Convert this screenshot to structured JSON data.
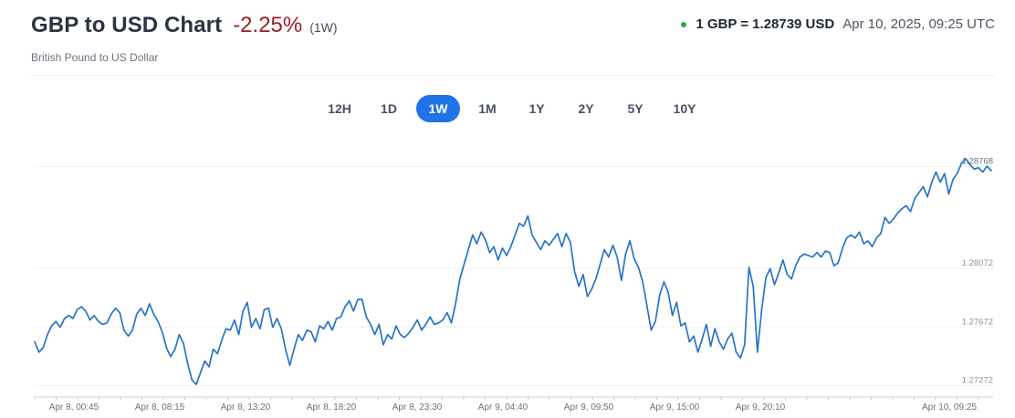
{
  "header": {
    "title": "GBP to USD Chart",
    "change": "-2.25%",
    "period": "(1W)",
    "subtitle": "British Pound to US Dollar"
  },
  "rate": {
    "value": "1 GBP = 1.28739 USD",
    "time": "Apr 10, 2025, 09:25 UTC",
    "status_color": "#1fae4a"
  },
  "colors": {
    "line": "#2a73c8",
    "accent": "#1f73e6",
    "negative": "#9b1f2a"
  },
  "tabs": [
    {
      "label": "12H",
      "active": false
    },
    {
      "label": "1D",
      "active": false
    },
    {
      "label": "1W",
      "active": true
    },
    {
      "label": "1M",
      "active": false
    },
    {
      "label": "1Y",
      "active": false
    },
    {
      "label": "2Y",
      "active": false
    },
    {
      "label": "5Y",
      "active": false
    },
    {
      "label": "10Y",
      "active": false
    }
  ],
  "chart_data": {
    "type": "line",
    "title": "",
    "xlabel": "",
    "ylabel": "",
    "grid": "horizontal",
    "x_tick_labels": [
      "Apr 8, 00:45",
      "Apr 8, 08:15",
      "Apr 8, 13:20",
      "Apr 8, 18:20",
      "Apr 8, 23:30",
      "Apr 9, 04:40",
      "Apr 9, 09:50",
      "Apr 9, 15:00",
      "Apr 9, 20:10",
      "Apr 10, 09:25"
    ],
    "y_tick_labels": [
      "1.28768",
      "1.28072",
      "1.27672",
      "1.27272"
    ],
    "y_ticks": [
      1.28768,
      1.28072,
      1.27672,
      1.27272
    ],
    "ylim": [
      1.272,
      1.2892
    ],
    "series": [
      {
        "values": [
          1.2757,
          1.275,
          1.2753,
          1.2762,
          1.2768,
          1.2771,
          1.2767,
          1.2773,
          1.2775,
          1.2773,
          1.2779,
          1.2781,
          1.2778,
          1.2772,
          1.2775,
          1.2771,
          1.2769,
          1.277,
          1.2776,
          1.278,
          1.2777,
          1.2765,
          1.2761,
          1.2765,
          1.2776,
          1.278,
          1.2775,
          1.2783,
          1.2776,
          1.2771,
          1.2764,
          1.2753,
          1.2747,
          1.2752,
          1.2762,
          1.2756,
          1.2742,
          1.2731,
          1.2728,
          1.2736,
          1.2744,
          1.274,
          1.2752,
          1.2749,
          1.2758,
          1.2766,
          1.2765,
          1.2772,
          1.2762,
          1.2778,
          1.2784,
          1.2767,
          1.2773,
          1.2766,
          1.2779,
          1.278,
          1.2767,
          1.2773,
          1.2766,
          1.2752,
          1.2741,
          1.2752,
          1.2762,
          1.2758,
          1.2765,
          1.2764,
          1.2757,
          1.2768,
          1.2766,
          1.2771,
          1.2765,
          1.2773,
          1.2774,
          1.2781,
          1.2785,
          1.2778,
          1.2786,
          1.2786,
          1.2774,
          1.2769,
          1.2762,
          1.2769,
          1.2755,
          1.2762,
          1.2759,
          1.2768,
          1.2762,
          1.276,
          1.2763,
          1.2767,
          1.2772,
          1.2765,
          1.2769,
          1.2774,
          1.2769,
          1.277,
          1.2772,
          1.2777,
          1.277,
          1.2783,
          1.28,
          1.281,
          1.282,
          1.283,
          1.2824,
          1.2832,
          1.2827,
          1.2818,
          1.2822,
          1.2813,
          1.2821,
          1.2816,
          1.2822,
          1.283,
          1.2838,
          1.2836,
          1.2843,
          1.283,
          1.2825,
          1.282,
          1.2826,
          1.2823,
          1.2827,
          1.2831,
          1.2822,
          1.2831,
          1.2825,
          1.2805,
          1.2795,
          1.2803,
          1.2788,
          1.2793,
          1.28,
          1.281,
          1.282,
          1.2815,
          1.2823,
          1.2815,
          1.2799,
          1.2817,
          1.2826,
          1.2814,
          1.2808,
          1.2798,
          1.2782,
          1.2765,
          1.2771,
          1.2789,
          1.2798,
          1.2791,
          1.2775,
          1.2784,
          1.2768,
          1.277,
          1.2757,
          1.2761,
          1.275,
          1.2759,
          1.2769,
          1.2754,
          1.2766,
          1.2757,
          1.2752,
          1.2759,
          1.2763,
          1.275,
          1.2746,
          1.2755,
          1.2808,
          1.2795,
          1.275,
          1.2779,
          1.2801,
          1.2807,
          1.2796,
          1.2804,
          1.2813,
          1.2803,
          1.28,
          1.2809,
          1.2815,
          1.2817,
          1.2816,
          1.2815,
          1.2818,
          1.2815,
          1.2819,
          1.2818,
          1.2809,
          1.2811,
          1.2821,
          1.2828,
          1.283,
          1.2828,
          1.2832,
          1.2824,
          1.2826,
          1.2822,
          1.2828,
          1.2831,
          1.2842,
          1.2838,
          1.2841,
          1.2845,
          1.2848,
          1.285,
          1.2846,
          1.2855,
          1.2859,
          1.2863,
          1.2856,
          1.2866,
          1.2873,
          1.2866,
          1.2872,
          1.2858,
          1.2868,
          1.2872,
          1.2879,
          1.2882,
          1.2878,
          1.2875,
          1.2876,
          1.2873,
          1.2877,
          1.2874
        ]
      }
    ]
  }
}
